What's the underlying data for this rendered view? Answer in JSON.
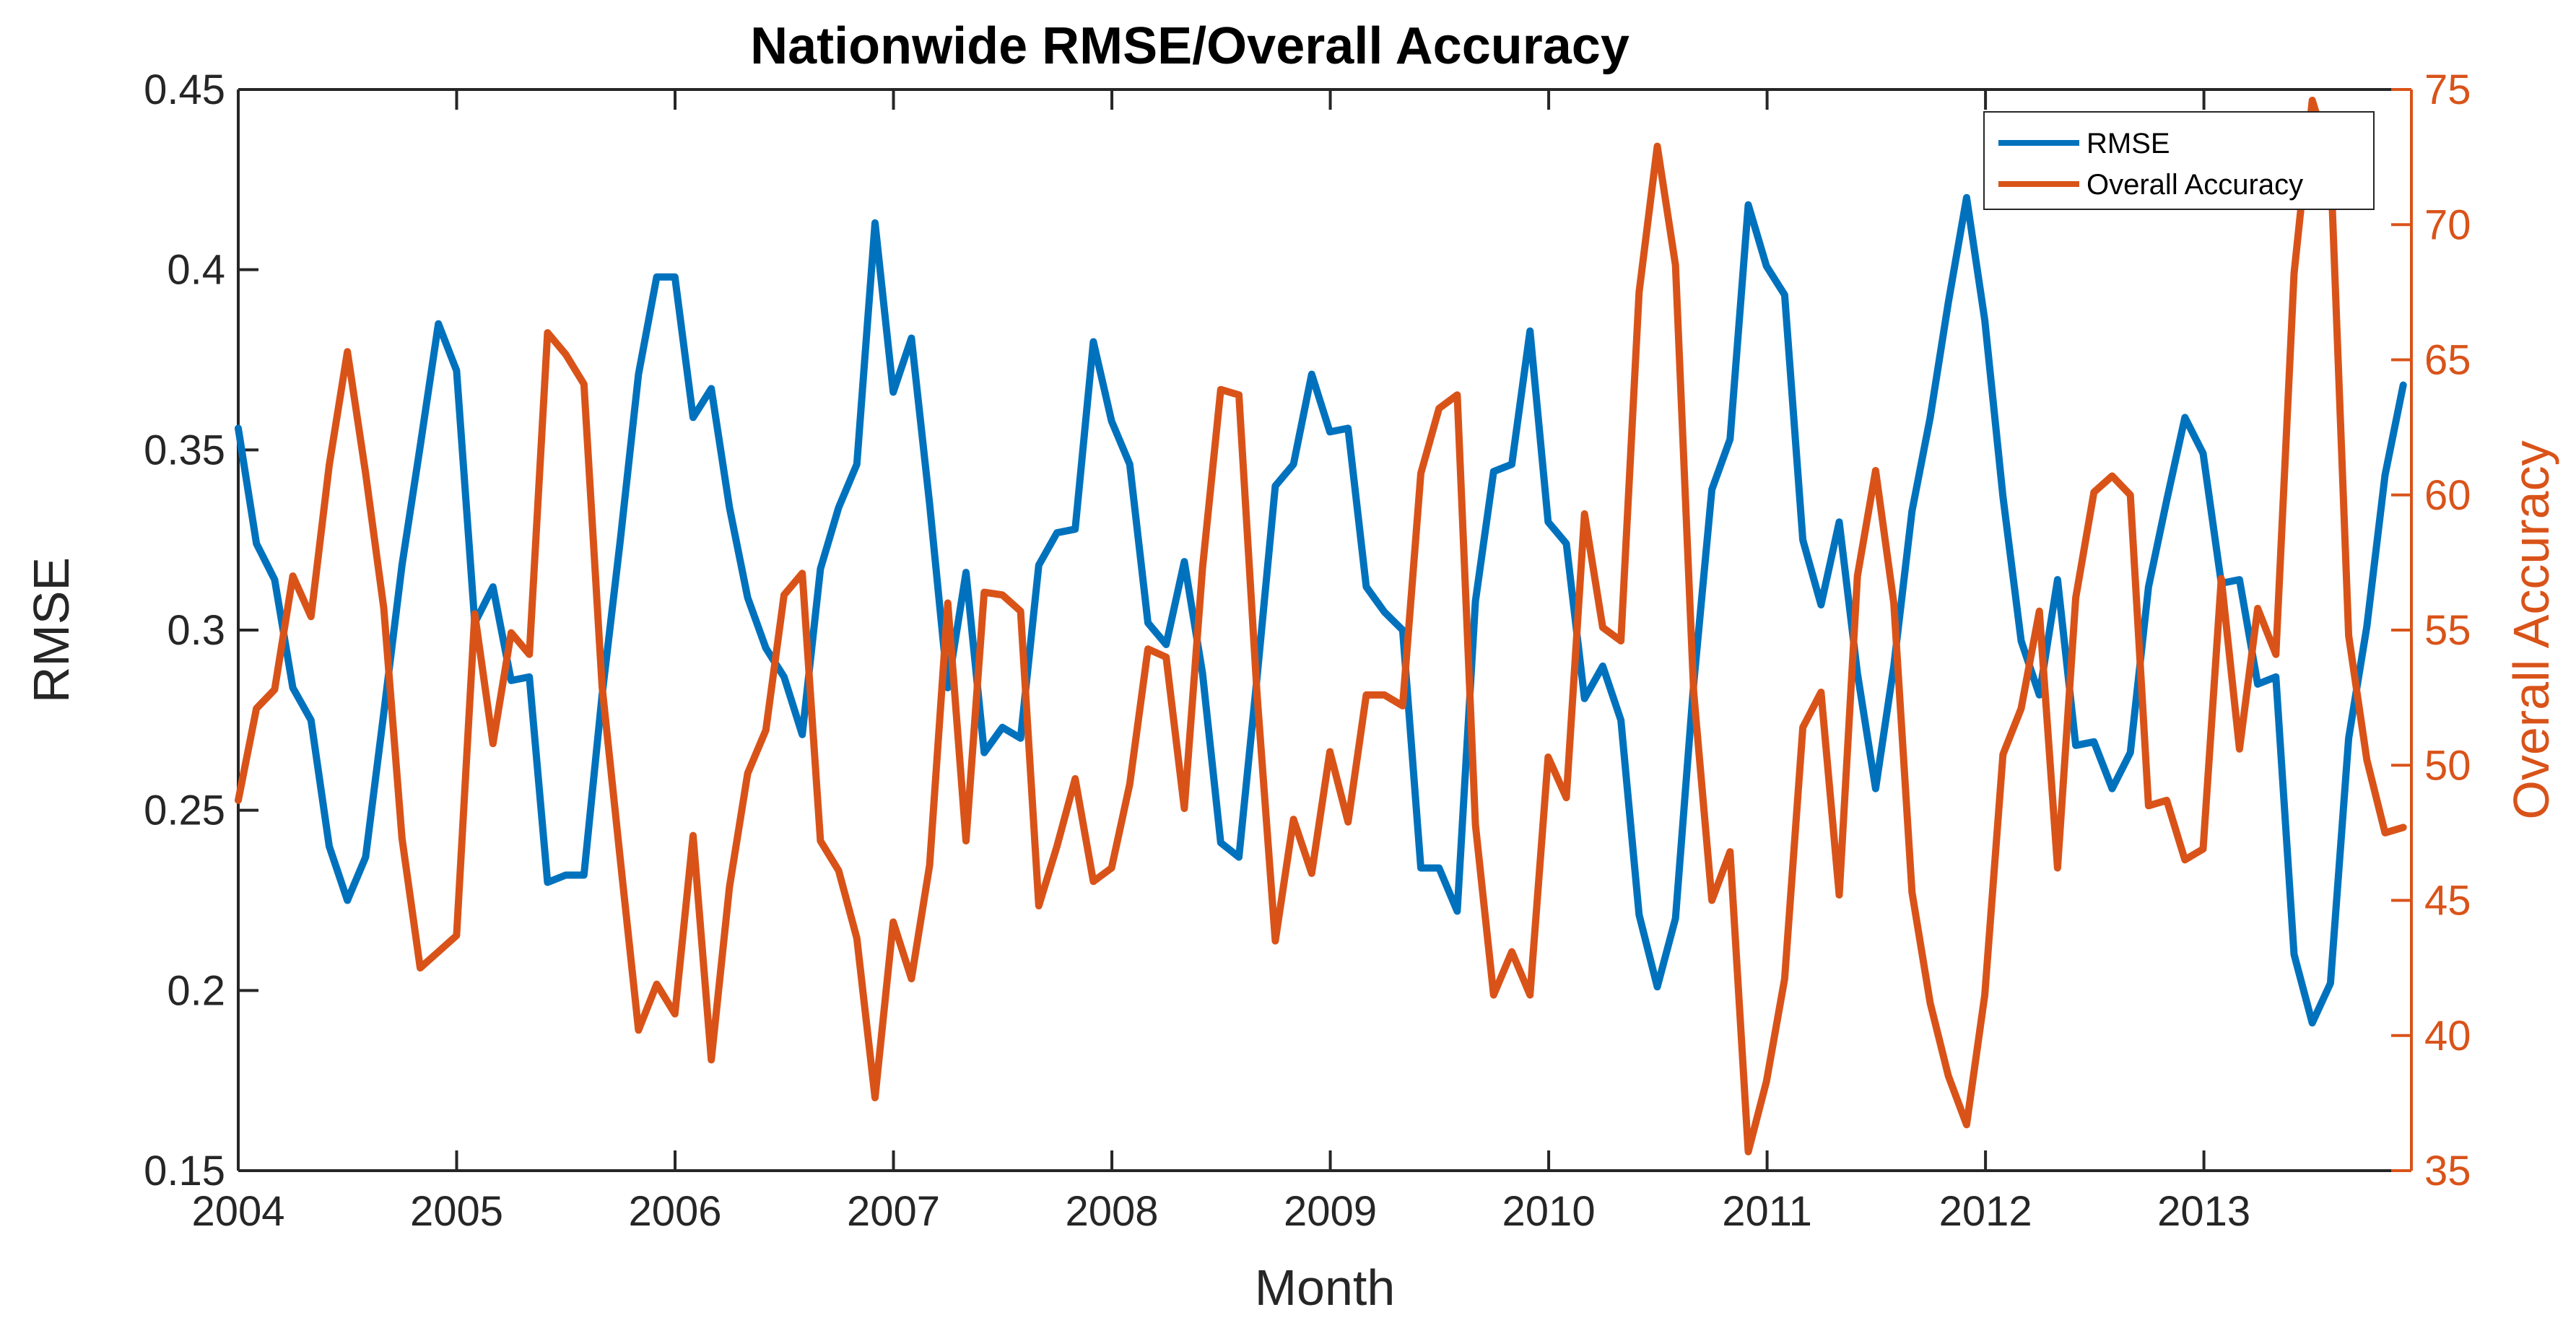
{
  "chart_data": {
    "type": "line",
    "title": "Nationwide  RMSE/Overall Accuracy",
    "xlabel": "Month",
    "ylabel_left": "RMSE",
    "ylabel_right": "Overall Accuracy",
    "xlim": [
      2004,
      2013.95
    ],
    "ylim_left": [
      0.15,
      0.45
    ],
    "ylim_right": [
      35,
      75
    ],
    "xticks": [
      "2004",
      "2005",
      "2006",
      "2007",
      "2008",
      "2009",
      "2010",
      "2011",
      "2012",
      "2013"
    ],
    "yticks_left": [
      "0.15",
      "0.2",
      "0.25",
      "0.3",
      "0.35",
      "0.4",
      "0.45"
    ],
    "yticks_right": [
      "35",
      "40",
      "45",
      "50",
      "55",
      "60",
      "65",
      "70",
      "75"
    ],
    "legend": [
      "RMSE",
      "Overall Accuracy"
    ],
    "legend_position": "top-right",
    "grid": false,
    "colors": {
      "rmse": "#0072BD",
      "accuracy": "#D95319"
    },
    "x_start": 2004,
    "x_step": 0.0833,
    "series": [
      {
        "name": "RMSE",
        "axis": "left",
        "values": [
          0.356,
          0.324,
          0.314,
          0.284,
          0.275,
          0.24,
          0.225,
          0.237,
          0.277,
          0.318,
          0.351,
          0.385,
          0.372,
          0.302,
          0.312,
          0.286,
          0.287,
          0.23,
          0.232,
          0.232,
          0.282,
          0.325,
          0.371,
          0.398,
          0.398,
          0.359,
          0.367,
          0.334,
          0.309,
          0.295,
          0.287,
          0.271,
          0.317,
          0.334,
          0.346,
          0.413,
          0.366,
          0.381,
          0.335,
          0.284,
          0.316,
          0.266,
          0.273,
          0.27,
          0.318,
          0.327,
          0.328,
          0.38,
          0.358,
          0.346,
          0.302,
          0.296,
          0.319,
          0.288,
          0.241,
          0.237,
          0.287,
          0.34,
          0.346,
          0.371,
          0.355,
          0.356,
          0.312,
          0.305,
          0.3,
          0.234,
          0.234,
          0.222,
          0.308,
          0.344,
          0.346,
          0.383,
          0.33,
          0.324,
          0.281,
          0.29,
          0.275,
          0.221,
          0.201,
          0.22,
          0.285,
          0.339,
          0.353,
          0.418,
          0.401,
          0.393,
          0.325,
          0.307,
          0.33,
          0.288,
          0.256,
          0.29,
          0.333,
          0.359,
          0.391,
          0.42,
          0.386,
          0.337,
          0.297,
          0.282,
          0.314,
          0.268,
          0.269,
          0.256,
          0.266,
          0.312,
          0.336,
          0.359,
          0.349,
          0.313,
          0.314,
          0.285,
          0.287,
          0.21,
          0.191,
          0.202,
          0.27,
          0.301,
          0.343,
          0.368
        ]
      },
      {
        "name": "Overall Accuracy",
        "axis": "right",
        "values": [
          48.7,
          52.1,
          52.8,
          57.0,
          55.5,
          61.1,
          65.3,
          60.8,
          55.8,
          47.3,
          42.5,
          43.1,
          43.7,
          55.6,
          50.8,
          54.9,
          54.1,
          66.0,
          65.2,
          64.1,
          52.9,
          46.5,
          40.2,
          41.9,
          40.8,
          47.4,
          39.1,
          45.5,
          49.7,
          51.3,
          56.3,
          57.1,
          47.2,
          46.1,
          43.6,
          37.7,
          44.2,
          42.1,
          46.3,
          56.0,
          47.2,
          56.4,
          56.3,
          55.7,
          44.8,
          47.0,
          49.5,
          45.7,
          46.2,
          49.3,
          54.3,
          54.0,
          48.4,
          57.3,
          63.9,
          63.7,
          52.6,
          43.5,
          48.0,
          46.0,
          50.5,
          47.9,
          52.6,
          52.6,
          52.2,
          60.8,
          63.2,
          63.7,
          47.8,
          41.5,
          43.1,
          41.5,
          50.3,
          48.8,
          59.3,
          55.1,
          54.6,
          67.5,
          72.9,
          68.5,
          52.7,
          45.0,
          46.8,
          35.7,
          38.3,
          42.1,
          51.4,
          52.7,
          45.2,
          57.0,
          60.9,
          56.0,
          45.3,
          41.2,
          38.5,
          36.7,
          41.5,
          50.4,
          52.1,
          55.7,
          46.2,
          56.2,
          60.1,
          60.7,
          60.0,
          48.5,
          48.7,
          46.5,
          46.9,
          56.9,
          50.6,
          55.8,
          54.1,
          68.2,
          74.6,
          72.4,
          54.8,
          50.2,
          47.5,
          47.7
        ]
      }
    ]
  }
}
